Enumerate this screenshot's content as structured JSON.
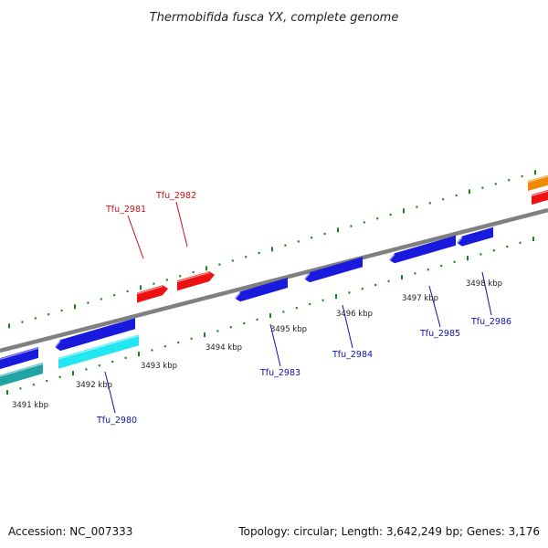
{
  "title": "Thermobifida fusca YX, complete genome",
  "footer": {
    "accession": "Accession: NC_007333",
    "summary": "Topology: circular; Length: 3,642,249 bp; Genes: 3,176"
  },
  "colors": {
    "forward_red": "#ee1111",
    "reverse_blue": "#1a1adf",
    "cyan": "#22e6f0",
    "teal": "#1fa3a3",
    "orange": "#f08a00",
    "genome_line": "#808080",
    "tick_green": "#118811",
    "label_red": "#cc1111",
    "label_blue": "#1111aa"
  },
  "kbp_labels": [
    "3491 kbp",
    "3492 kbp",
    "3493 kbp",
    "3494 kbp",
    "3495 kbp",
    "3496 kbp",
    "3497 kbp",
    "3498 kbp"
  ],
  "genes": [
    {
      "name": "Tfu_2981",
      "strand": "+"
    },
    {
      "name": "Tfu_2982",
      "strand": "+"
    },
    {
      "name": "Tfu_2980",
      "strand": "-"
    },
    {
      "name": "Tfu_2983",
      "strand": "-"
    },
    {
      "name": "Tfu_2984",
      "strand": "-"
    },
    {
      "name": "Tfu_2985",
      "strand": "-"
    },
    {
      "name": "Tfu_2986",
      "strand": "-"
    }
  ]
}
